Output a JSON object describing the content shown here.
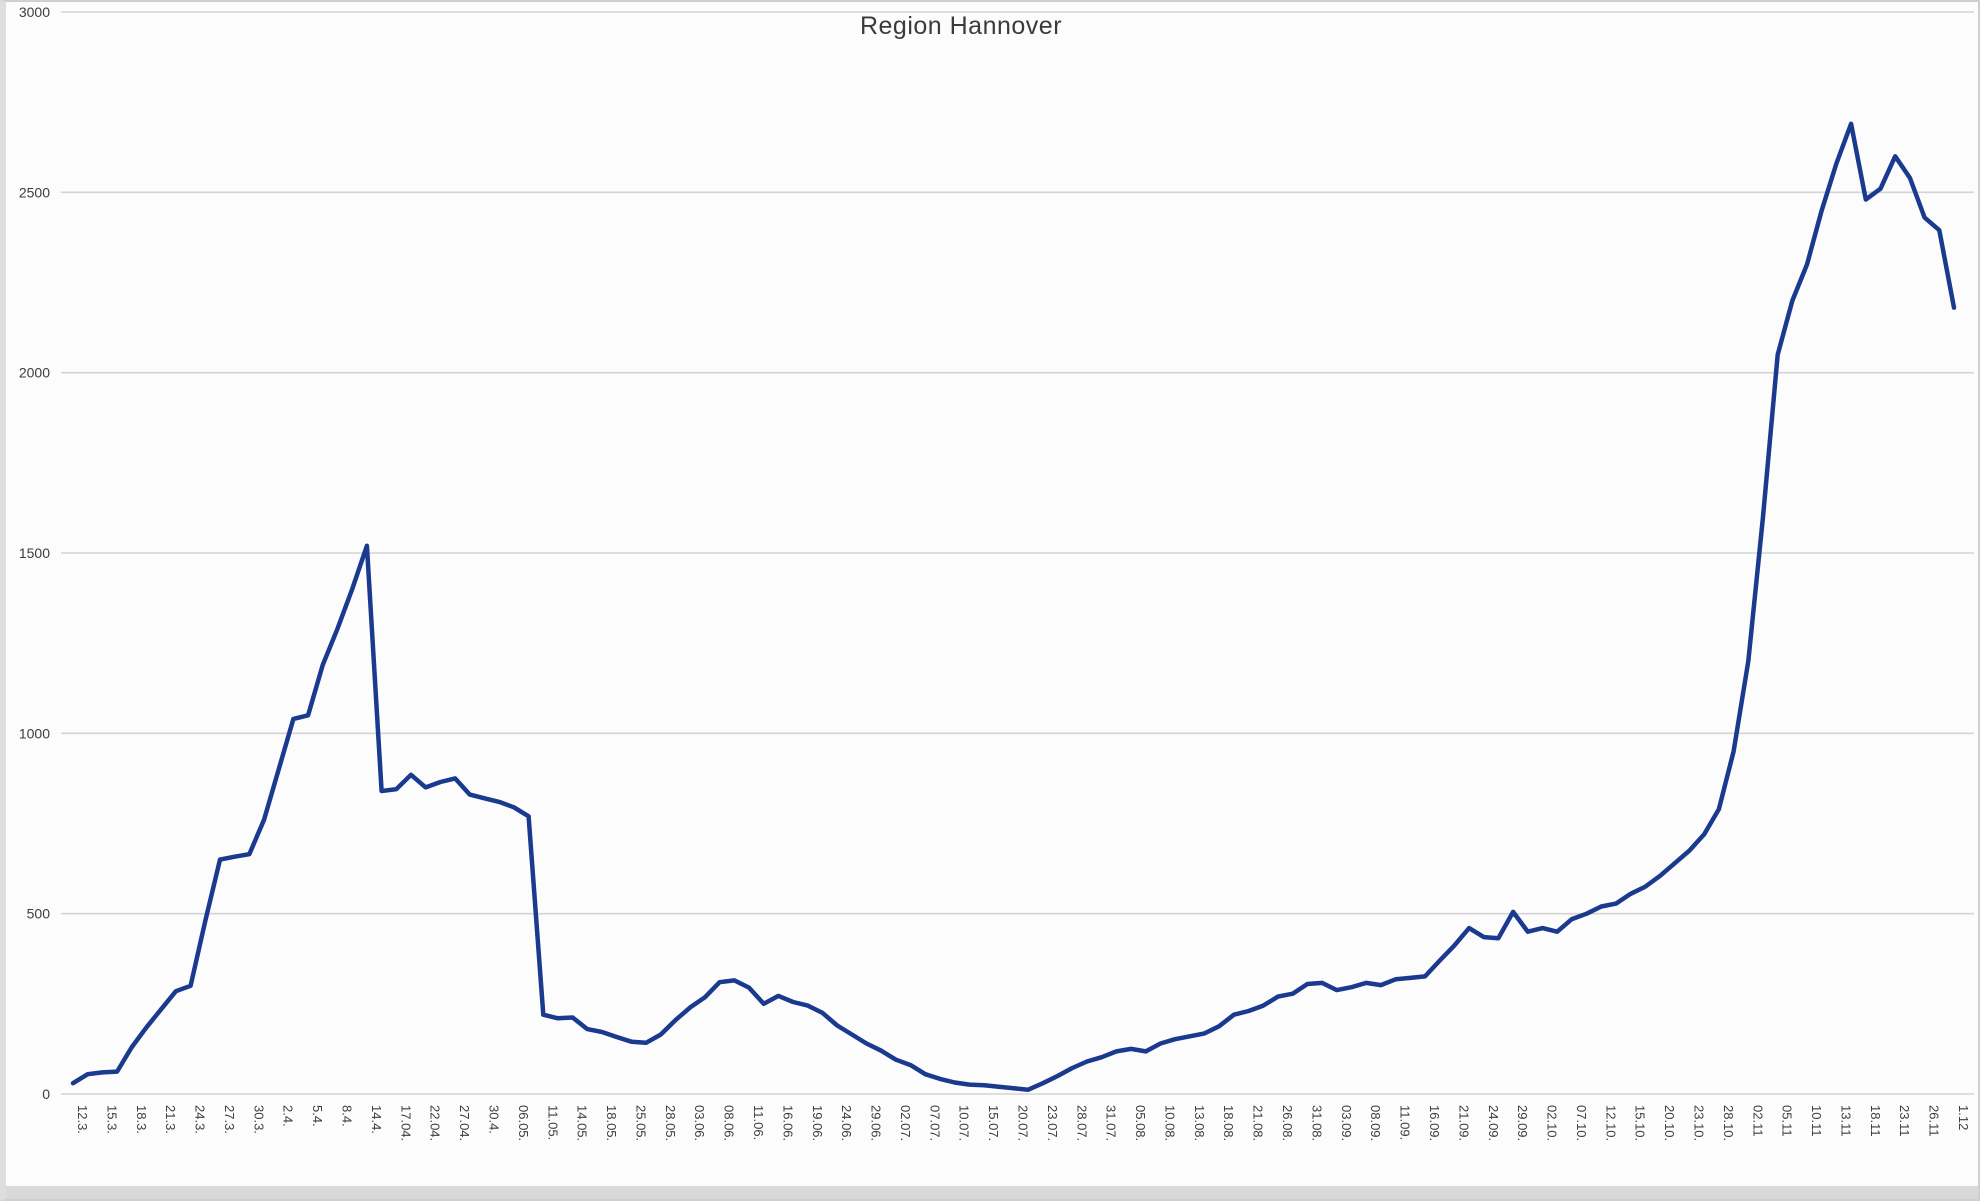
{
  "chart_data": {
    "type": "line",
    "title": "Region Hannover",
    "xlabel": "",
    "ylabel": "",
    "ylim": [
      0,
      3000
    ],
    "y_ticks": [
      0,
      500,
      1000,
      1500,
      2000,
      2500,
      3000
    ],
    "grid": true,
    "legend": null,
    "line_color": "#1a3a8f",
    "grid_color": "#d4d4d4",
    "categories": [
      "12.3.",
      "15.3.",
      "18.3.",
      "21.3.",
      "24.3.",
      "27.3.",
      "30.3.",
      "2.4.",
      "5.4.",
      "8.4.",
      "14.4.",
      "17.04.",
      "22.04.",
      "27.04.",
      "30.4.",
      "06.05.",
      "11.05.",
      "14.05.",
      "18.05.",
      "25.05.",
      "28.05.",
      "03.06.",
      "08.06.",
      "11.06.",
      "16.06.",
      "19.06.",
      "24.06.",
      "29.06.",
      "02.07.",
      "07.07.",
      "10.07.",
      "15.07.",
      "20.07.",
      "23.07.",
      "28.07.",
      "31.07.",
      "05.08.",
      "10.08.",
      "13.08.",
      "18.08.",
      "21.08.",
      "26.08.",
      "31.08.",
      "03.09.",
      "08.09.",
      "11.09.",
      "16.09.",
      "21.09.",
      "24.09.",
      "29.09.",
      "02.10.",
      "07.10.",
      "12.10.",
      "15.10.",
      "20.10.",
      "23.10.",
      "28.10.",
      "02.11",
      "05.11",
      "10.11",
      "13.11",
      "18.11",
      "23.11",
      "26.11",
      "1.12"
    ],
    "x_unit": "category_index",
    "sample_step": 0.5,
    "series": [
      {
        "name": "",
        "values": [
          30,
          55,
          60,
          62,
          130,
          185,
          235,
          285,
          300,
          480,
          650,
          658,
          665,
          760,
          900,
          1040,
          1050,
          1190,
          1290,
          1400,
          1520,
          840,
          845,
          885,
          850,
          865,
          875,
          830,
          820,
          810,
          795,
          770,
          220,
          210,
          212,
          180,
          172,
          158,
          145,
          142,
          165,
          205,
          240,
          268,
          310,
          315,
          295,
          250,
          272,
          255,
          245,
          225,
          190,
          165,
          140,
          120,
          95,
          80,
          55,
          42,
          32,
          26,
          24,
          20,
          16,
          12,
          30,
          50,
          72,
          90,
          102,
          118,
          125,
          118,
          140,
          152,
          160,
          168,
          188,
          220,
          230,
          245,
          270,
          278,
          305,
          308,
          288,
          296,
          308,
          302,
          318,
          322,
          326,
          370,
          412,
          460,
          435,
          432,
          505,
          450,
          460,
          450,
          485,
          500,
          520,
          528,
          555,
          575,
          605,
          640,
          675,
          720,
          790,
          950,
          1200,
          1600,
          2050,
          2200,
          2300,
          2450,
          2580,
          2690,
          2480,
          2510,
          2600,
          2540,
          2430,
          2395,
          2180
        ]
      }
    ]
  }
}
